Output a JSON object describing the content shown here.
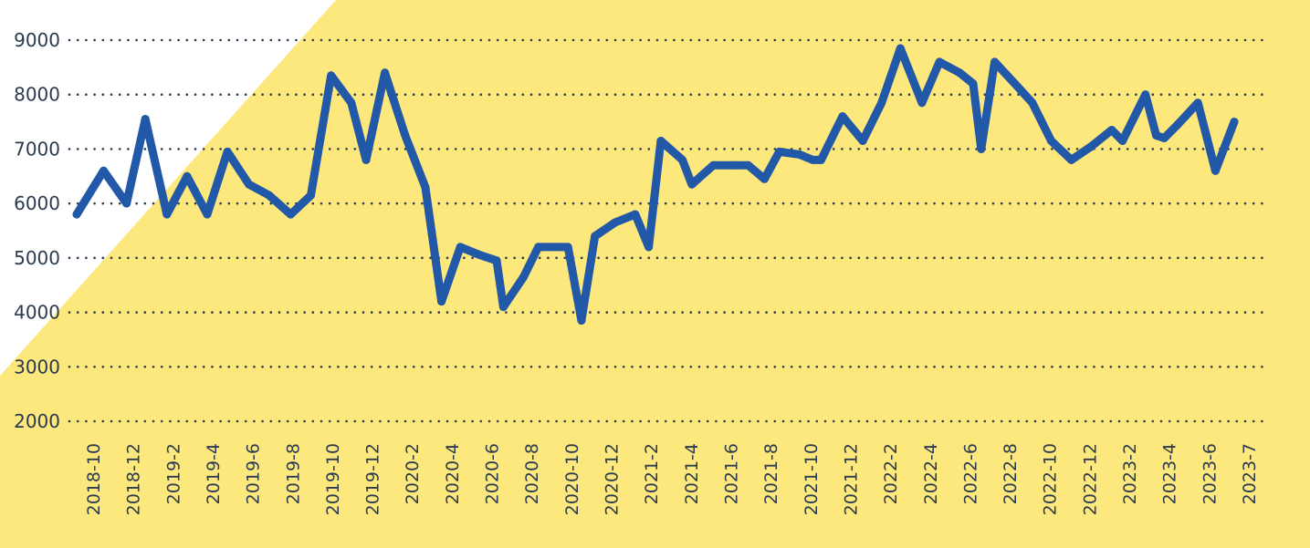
{
  "colors": {
    "background": "#ffffff",
    "panel": "#fde87d",
    "line": "#2158a8",
    "grid": "#2b3a4e",
    "text": "#2b3a4e"
  },
  "chart_data": {
    "type": "line",
    "title": "",
    "xlabel": "",
    "ylabel": "",
    "ylim": [
      2000,
      9000
    ],
    "yticks": [
      2000,
      3000,
      4000,
      5000,
      6000,
      7000,
      8000,
      9000
    ],
    "grid": "horizontal dotted",
    "x_tick_labels": [
      "2018-10",
      "2018-12",
      "2019-2",
      "2019-4",
      "2019-6",
      "2019-8",
      "2019-10",
      "2019-12",
      "2020-2",
      "2020-4",
      "2020-6",
      "2020-8",
      "2020-10",
      "2020-12",
      "2021-2",
      "2021-4",
      "2021-6",
      "2021-8",
      "2021-10",
      "2021-12",
      "2022-2",
      "2022-4",
      "2022-6",
      "2022-8",
      "2022-10",
      "2022-12",
      "2023-2",
      "2023-4",
      "2023-6",
      "2023-7"
    ],
    "series": [
      {
        "values": [
          5800,
          6600,
          6000,
          7550,
          5800,
          6500,
          5800,
          6950,
          6350,
          6150,
          5800,
          6150,
          8350,
          7850,
          6800,
          8400,
          7250,
          6300,
          4200,
          5200,
          5050,
          4950,
          4100,
          4650,
          5200,
          5200,
          5200,
          3850,
          5400,
          5650,
          5800,
          5200,
          7150,
          6800,
          6350,
          6700,
          6700,
          6700,
          6450,
          6950,
          6900,
          6800,
          6800,
          7600,
          7150,
          7850,
          8850,
          7850,
          8600,
          8400,
          8200,
          7000,
          8600,
          8200,
          7850,
          7150,
          6800,
          7050,
          7350,
          7150,
          8000,
          7250,
          7200,
          7450,
          7850,
          6600,
          7500
        ],
        "x_positions": [
          0.0,
          2.0,
          3.7,
          5.1,
          6.7,
          8.2,
          9.7,
          11.2,
          12.8,
          14.3,
          15.9,
          17.4,
          18.9,
          20.4,
          21.5,
          22.9,
          24.4,
          25.9,
          27.1,
          28.5,
          30.0,
          31.2,
          31.7,
          33.2,
          34.3,
          35.5,
          36.5,
          37.5,
          38.5,
          40.0,
          41.5,
          42.5,
          43.4,
          45.0,
          45.7,
          47.3,
          48.7,
          49.9,
          51.1,
          52.2,
          53.7,
          54.7,
          55.3,
          56.9,
          58.4,
          59.8,
          61.2,
          62.8,
          64.1,
          65.6,
          66.6,
          67.2,
          68.2,
          69.7,
          71.0,
          72.4,
          73.9,
          75.4,
          76.9,
          77.7,
          79.4,
          80.2,
          80.8,
          81.8,
          83.3,
          84.6,
          86.0
        ]
      }
    ]
  }
}
